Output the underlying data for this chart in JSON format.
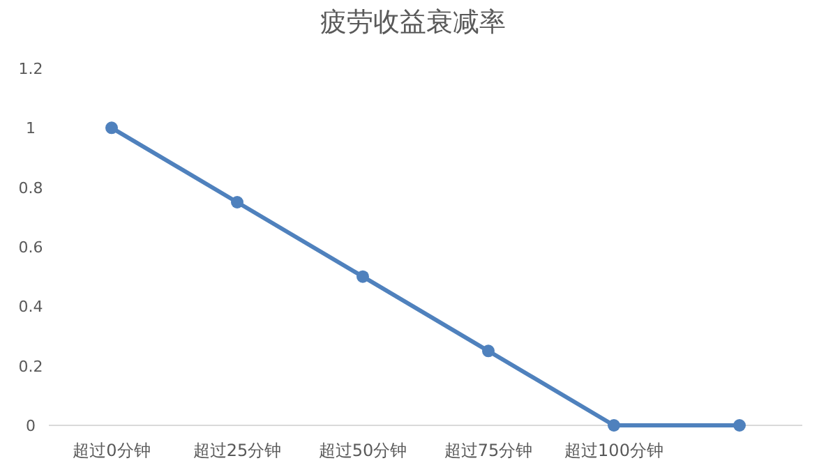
{
  "chart_data": {
    "type": "line",
    "title": "疲劳收益衰减率",
    "categories": [
      "超过0分钟",
      "超过25分钟",
      "超过50分钟",
      "超过75分钟",
      "超过100分钟",
      null
    ],
    "values": [
      1,
      0.75,
      0.5,
      0.25,
      0,
      0
    ],
    "color": "#4f81bd",
    "marker": "circle",
    "ylim": [
      0,
      1.2
    ],
    "yticks": [
      0,
      0.2,
      0.4,
      0.6,
      0.8,
      1,
      1.2
    ]
  }
}
